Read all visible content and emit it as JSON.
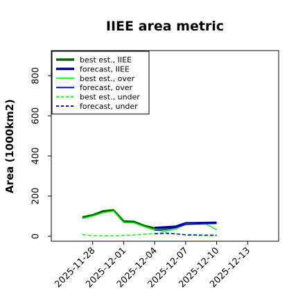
{
  "chart_data": {
    "type": "line",
    "title": "IIEE area metric",
    "ylabel": "Area (1000km2)",
    "xlabel": "",
    "ylim": [
      -25,
      925
    ],
    "xlim": [
      "2025-11-24",
      "2025-12-16"
    ],
    "yticks": [
      0,
      200,
      400,
      600,
      800
    ],
    "xticks": [
      "2025-11-28",
      "2025-12-01",
      "2025-12-04",
      "2025-12-07",
      "2025-12-10",
      "2025-12-13"
    ],
    "xtick_colors": [
      "#000000",
      "#000000",
      "#008000",
      "#000000",
      "#000000",
      "#000000"
    ],
    "grid": false,
    "legend_position": "upper-left",
    "x": [
      "2025-11-27",
      "2025-11-28",
      "2025-11-29",
      "2025-11-30",
      "2025-12-01",
      "2025-12-02",
      "2025-12-03",
      "2025-12-04",
      "2025-12-05",
      "2025-12-06",
      "2025-12-07",
      "2025-12-08",
      "2025-12-09",
      "2025-12-10"
    ],
    "series": [
      {
        "name": "best est., IIEE",
        "color": "#006400",
        "style": "solid",
        "width": 3,
        "values": [
          95,
          105,
          125,
          130,
          75,
          72,
          52,
          40,
          42,
          47,
          65,
          65,
          66,
          66
        ]
      },
      {
        "name": "forecast, IIEE",
        "color": "#00008b",
        "style": "solid",
        "width": 3,
        "x": [
          "2025-12-04",
          "2025-12-05",
          "2025-12-06",
          "2025-12-07",
          "2025-12-08",
          "2025-12-09",
          "2025-12-10"
        ],
        "values": [
          42,
          45,
          48,
          65,
          66,
          67,
          68
        ]
      },
      {
        "name": "best est., over",
        "color": "#00ff00",
        "style": "solid",
        "width": 1.5,
        "values": [
          88,
          100,
          117,
          125,
          68,
          66,
          47,
          30,
          25,
          35,
          60,
          60,
          60,
          32
        ]
      },
      {
        "name": "forecast, over",
        "color": "#0000ff",
        "style": "solid",
        "width": 1.5,
        "x": [
          "2025-12-04",
          "2025-12-05",
          "2025-12-06",
          "2025-12-07",
          "2025-12-08",
          "2025-12-09",
          "2025-12-10"
        ],
        "values": [
          30,
          33,
          42,
          58,
          60,
          62,
          63
        ]
      },
      {
        "name": "best est., under",
        "color": "#00ff00",
        "style": "dashed",
        "width": 1.5,
        "values": [
          8,
          3,
          2,
          2,
          4,
          6,
          10,
          14,
          18,
          12,
          6,
          4,
          3,
          2
        ]
      },
      {
        "name": "forecast, under",
        "color": "#0000ff",
        "style": "dashed",
        "width": 1.5,
        "x": [
          "2025-12-04",
          "2025-12-05",
          "2025-12-06",
          "2025-12-07",
          "2025-12-08",
          "2025-12-09",
          "2025-12-10"
        ],
        "values": [
          12,
          14,
          12,
          7,
          6,
          5,
          5
        ]
      }
    ]
  }
}
